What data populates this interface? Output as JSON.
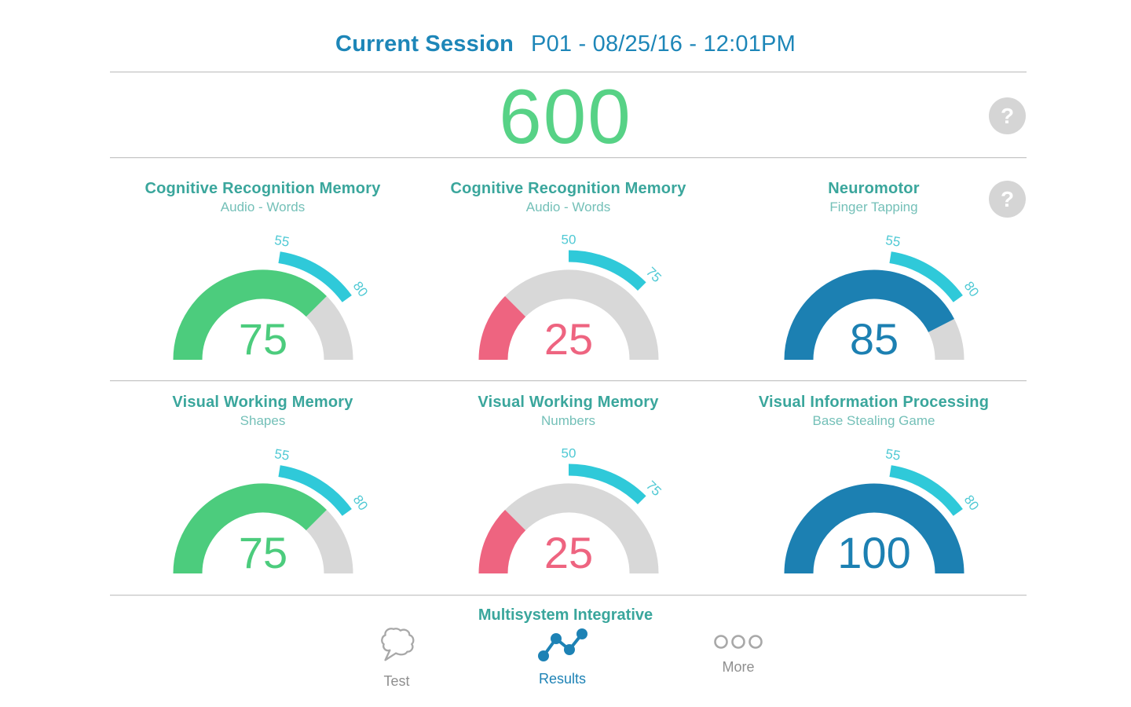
{
  "header": {
    "title": "Current Session",
    "session": "P01 - 08/25/16 - 12:01PM"
  },
  "summary": {
    "score": "600",
    "help_label": "?"
  },
  "gauges_help_label": "?",
  "chart_data": [
    {
      "type": "gauge",
      "title": "Cognitive Recognition Memory",
      "subtitle": "Audio - Words",
      "value": 75,
      "min": 0,
      "max": 100,
      "normal_band": [
        55,
        80
      ],
      "value_color": "#4ccc7d"
    },
    {
      "type": "gauge",
      "title": "Cognitive Recognition Memory",
      "subtitle": "Audio - Words",
      "value": 25,
      "min": 0,
      "max": 100,
      "normal_band": [
        50,
        75
      ],
      "value_color": "#ee6480"
    },
    {
      "type": "gauge",
      "title": "Neuromotor",
      "subtitle": "Finger Tapping",
      "value": 85,
      "min": 0,
      "max": 100,
      "normal_band": [
        55,
        80
      ],
      "value_color": "#1c80b2"
    },
    {
      "type": "gauge",
      "title": "Visual Working Memory",
      "subtitle": "Shapes",
      "value": 75,
      "min": 0,
      "max": 100,
      "normal_band": [
        55,
        80
      ],
      "value_color": "#4ccc7d"
    },
    {
      "type": "gauge",
      "title": "Visual Working Memory",
      "subtitle": "Numbers",
      "value": 25,
      "min": 0,
      "max": 100,
      "normal_band": [
        50,
        75
      ],
      "value_color": "#ee6480"
    },
    {
      "type": "gauge",
      "title": "Visual Information Processing",
      "subtitle": "Base Stealing Game",
      "value": 100,
      "min": 0,
      "max": 100,
      "normal_band": [
        55,
        80
      ],
      "value_color": "#1c80b2"
    }
  ],
  "footer": {
    "section_title": "Multisystem Integrative",
    "nav": [
      {
        "label": "Test",
        "icon": "speech-bubble-icon",
        "active": false
      },
      {
        "label": "Results",
        "icon": "line-chart-icon",
        "active": true
      },
      {
        "label": "More",
        "icon": "more-dots-icon",
        "active": false
      }
    ]
  },
  "colors": {
    "header_blue": "#1d86b8",
    "score_green": "#57d286",
    "title_teal": "#3aa69c",
    "subtitle_teal": "#74c0b8",
    "gauge_green": "#4ccc7d",
    "gauge_pink": "#ee6480",
    "gauge_blue": "#1c80b2",
    "normal_band_teal": "#2fc9d9",
    "band_label_teal": "#4fc9d4",
    "track_gray": "#d8d8d8",
    "divider_gray": "#c6c6c6",
    "help_circle_gray": "#d5d5d5",
    "nav_gray": "#a8a8a8",
    "nav_active_blue": "#1d82b5"
  }
}
